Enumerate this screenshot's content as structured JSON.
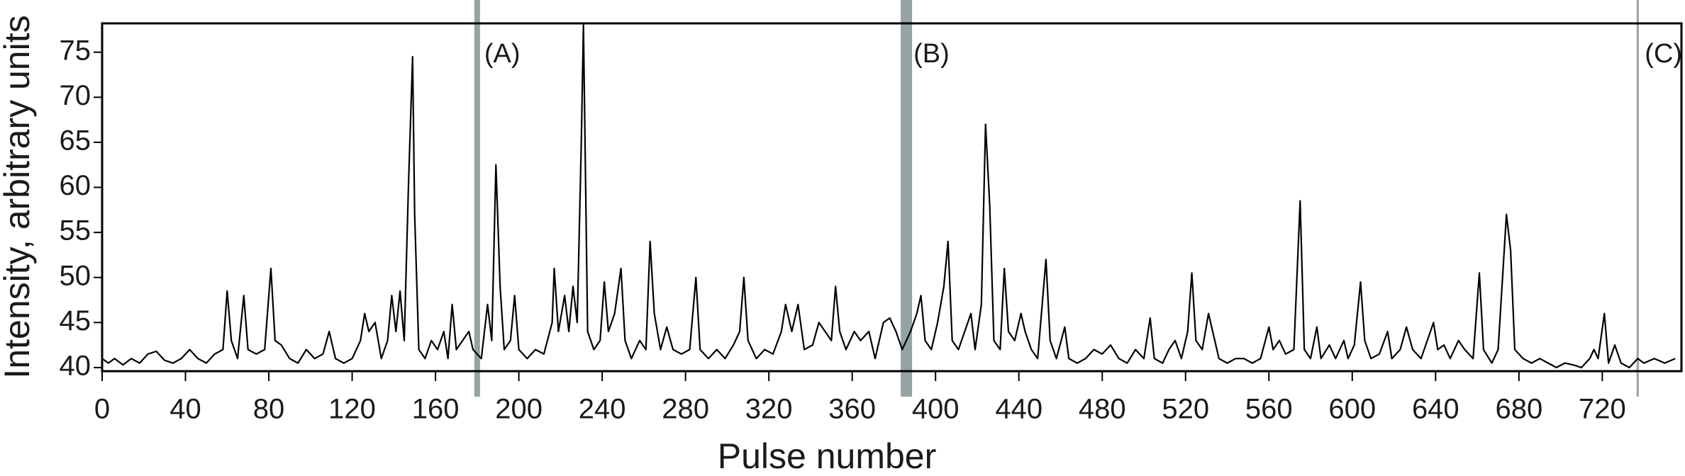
{
  "chart_data": {
    "type": "line",
    "xlabel": "Pulse number",
    "ylabel": "Intensity, arbitrary units",
    "color": "#000000",
    "marker_color": "#95a3a4",
    "xlim": [
      0,
      758
    ],
    "ylim": [
      39.6,
      78.2
    ],
    "xticks": [
      0,
      40,
      80,
      120,
      160,
      200,
      240,
      280,
      320,
      360,
      400,
      440,
      480,
      520,
      560,
      600,
      640,
      680,
      720
    ],
    "yticks": [
      40,
      45,
      50,
      55,
      60,
      65,
      70,
      75
    ],
    "annotations": [
      {
        "x": 180,
        "label": "(A)"
      },
      {
        "x": 386,
        "label": "(B)"
      },
      {
        "x": 737,
        "label": "(C)"
      }
    ],
    "x": [
      0,
      3,
      6,
      10,
      14,
      18,
      22,
      26,
      30,
      34,
      38,
      42,
      46,
      50,
      54,
      58,
      60,
      62,
      65,
      68,
      70,
      74,
      78,
      81,
      83,
      86,
      90,
      94,
      98,
      102,
      106,
      109,
      112,
      116,
      120,
      124,
      126,
      128,
      131,
      134,
      137,
      139,
      141,
      143,
      145,
      147,
      149,
      150,
      152,
      155,
      158,
      161,
      164,
      166,
      168,
      170,
      173,
      176,
      178,
      182,
      185,
      187,
      189,
      191,
      193,
      196,
      198,
      200,
      204,
      208,
      212,
      216,
      217,
      219,
      222,
      224,
      226,
      228,
      230,
      231,
      233,
      236,
      239,
      241,
      243,
      246,
      249,
      251,
      254,
      258,
      261,
      263,
      265,
      268,
      271,
      274,
      278,
      282,
      285,
      287,
      291,
      295,
      299,
      303,
      306,
      308,
      310,
      314,
      318,
      322,
      326,
      328,
      331,
      334,
      337,
      341,
      344,
      347,
      350,
      352,
      354,
      357,
      361,
      364,
      368,
      371,
      375,
      378,
      381,
      384,
      388,
      391,
      393,
      395,
      398,
      401,
      404,
      406,
      408,
      411,
      414,
      417,
      419,
      422,
      424,
      426,
      428,
      431,
      433,
      435,
      438,
      441,
      443,
      446,
      449,
      453,
      455,
      458,
      462,
      464,
      468,
      472,
      476,
      480,
      484,
      488,
      492,
      496,
      500,
      503,
      505,
      509,
      512,
      515,
      518,
      521,
      523,
      525,
      528,
      531,
      533,
      536,
      540,
      544,
      548,
      552,
      556,
      560,
      562,
      565,
      568,
      572,
      575,
      577,
      580,
      583,
      585,
      589,
      592,
      596,
      598,
      601,
      604,
      606,
      609,
      613,
      617,
      619,
      623,
      626,
      629,
      633,
      636,
      639,
      641,
      644,
      647,
      651,
      654,
      658,
      661,
      663,
      667,
      670,
      674,
      676,
      678,
      682,
      686,
      690,
      694,
      698,
      702,
      706,
      710,
      714,
      716,
      718,
      721,
      723,
      726,
      729,
      733,
      737,
      740,
      745,
      750,
      755
    ],
    "values": [
      41,
      40.5,
      41,
      40.3,
      41,
      40.5,
      41.5,
      41.8,
      40.8,
      40.5,
      41,
      42,
      41,
      40.5,
      41.5,
      42,
      48.5,
      43,
      41,
      48,
      42,
      41.5,
      42,
      51,
      43,
      42.5,
      41,
      40.5,
      42,
      41,
      41.5,
      44,
      41,
      40.5,
      41,
      43,
      46,
      44,
      45,
      41,
      43,
      48,
      44,
      48.5,
      43,
      60,
      74.5,
      57,
      42,
      41,
      43,
      42,
      44,
      41,
      47,
      42,
      43,
      44,
      42,
      41,
      47,
      43,
      62.5,
      49,
      42,
      43,
      48,
      42,
      41,
      42,
      41.5,
      45,
      51,
      44,
      48,
      44,
      49,
      45,
      65,
      78,
      44,
      42,
      43,
      49.5,
      44,
      46,
      51,
      43,
      41,
      43,
      42,
      54,
      46,
      42,
      44.5,
      42,
      41.5,
      42,
      50,
      42,
      41,
      42,
      41,
      42.5,
      44,
      50,
      43,
      41,
      42,
      41.5,
      44,
      47,
      44,
      47,
      42,
      42.5,
      45,
      44,
      43,
      49,
      44,
      42,
      44,
      43,
      44,
      41,
      45,
      45.5,
      44,
      42,
      44,
      46,
      48,
      43,
      42,
      45,
      49,
      54,
      43,
      42,
      44,
      46,
      42,
      47,
      67,
      58,
      43,
      42,
      51,
      44,
      43,
      46,
      44,
      42,
      41,
      52,
      43,
      41,
      44.5,
      41,
      40.5,
      41,
      42,
      41.5,
      42.5,
      41,
      40.5,
      42,
      41,
      45.5,
      41,
      40.5,
      42,
      43,
      41,
      44,
      50.5,
      43,
      42,
      46,
      44,
      41,
      40.5,
      41,
      41,
      40.5,
      41,
      44.5,
      42,
      43,
      41.5,
      42,
      58.5,
      42,
      41,
      44.5,
      41,
      42.5,
      41,
      43,
      41,
      42.5,
      49.5,
      43,
      41,
      41.5,
      44,
      41,
      42,
      44.5,
      42,
      41,
      43,
      45,
      42,
      42.5,
      41,
      43,
      42,
      41,
      50.5,
      42,
      40.5,
      42,
      57,
      53,
      42,
      41,
      40.5,
      41,
      40.5,
      40,
      40.5,
      40.3,
      40,
      41,
      42,
      41,
      46,
      40.5,
      42.5,
      40.5,
      40,
      41,
      40.5,
      41,
      40.5,
      41
    ]
  }
}
